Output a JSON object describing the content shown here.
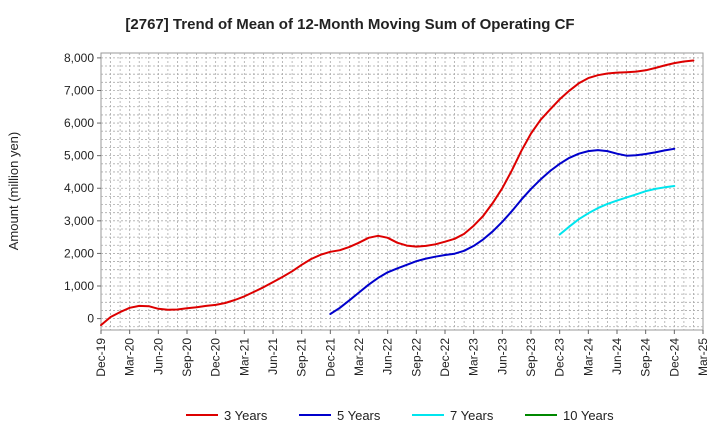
{
  "chart_data": {
    "type": "line",
    "title": "[2767]  Trend of Mean of 12-Month Moving Sum of Operating CF",
    "xlabel": "",
    "ylabel": "Amount (million yen)",
    "ylim": [
      -350,
      8150
    ],
    "yticks": [
      0,
      1000,
      2000,
      3000,
      4000,
      5000,
      6000,
      7000,
      8000
    ],
    "ytick_labels": [
      "0",
      "1,000",
      "2,000",
      "3,000",
      "4,000",
      "5,000",
      "6,000",
      "7,000",
      "8,000"
    ],
    "xtick_labels": [
      "Dec-19",
      "Mar-20",
      "Jun-20",
      "Sep-20",
      "Dec-20",
      "Mar-21",
      "Jun-21",
      "Sep-21",
      "Dec-21",
      "Mar-22",
      "Jun-22",
      "Sep-22",
      "Dec-22",
      "Mar-23",
      "Jun-23",
      "Sep-23",
      "Dec-23",
      "Mar-24",
      "Jun-24",
      "Sep-24",
      "Dec-24",
      "Mar-25"
    ],
    "grid": true,
    "legend_position": "bottom",
    "series": [
      {
        "name": "3 Years",
        "color": "#dd0000",
        "start_index": 0,
        "values": [
          -200,
          50,
          200,
          330,
          390,
          380,
          300,
          270,
          280,
          320,
          350,
          390,
          420,
          480,
          570,
          680,
          820,
          960,
          1120,
          1280,
          1450,
          1650,
          1830,
          1960,
          2050,
          2100,
          2200,
          2330,
          2480,
          2540,
          2480,
          2330,
          2240,
          2210,
          2230,
          2280,
          2360,
          2450,
          2600,
          2850,
          3150,
          3550,
          4000,
          4550,
          5150,
          5680,
          6100,
          6420,
          6730,
          6990,
          7220,
          7380,
          7470,
          7520,
          7550,
          7560,
          7580,
          7620,
          7690,
          7770,
          7840,
          7890,
          7920
        ]
      },
      {
        "name": "5 Years",
        "color": "#0000cc",
        "start_index": 24,
        "values": [
          140,
          330,
          560,
          800,
          1040,
          1250,
          1420,
          1540,
          1650,
          1760,
          1840,
          1900,
          1950,
          1990,
          2080,
          2230,
          2430,
          2680,
          2970,
          3300,
          3650,
          3980,
          4270,
          4530,
          4750,
          4930,
          5060,
          5140,
          5170,
          5140,
          5060,
          5000,
          5010,
          5050,
          5100,
          5160,
          5210
        ]
      },
      {
        "name": "7 Years",
        "color": "#00e5ee",
        "start_index": 48,
        "values": [
          2580,
          2820,
          3050,
          3230,
          3390,
          3520,
          3620,
          3720,
          3810,
          3910,
          3980,
          4030,
          4070
        ]
      },
      {
        "name": "10 Years",
        "color": "#008800",
        "start_index": 0,
        "values": []
      }
    ]
  }
}
